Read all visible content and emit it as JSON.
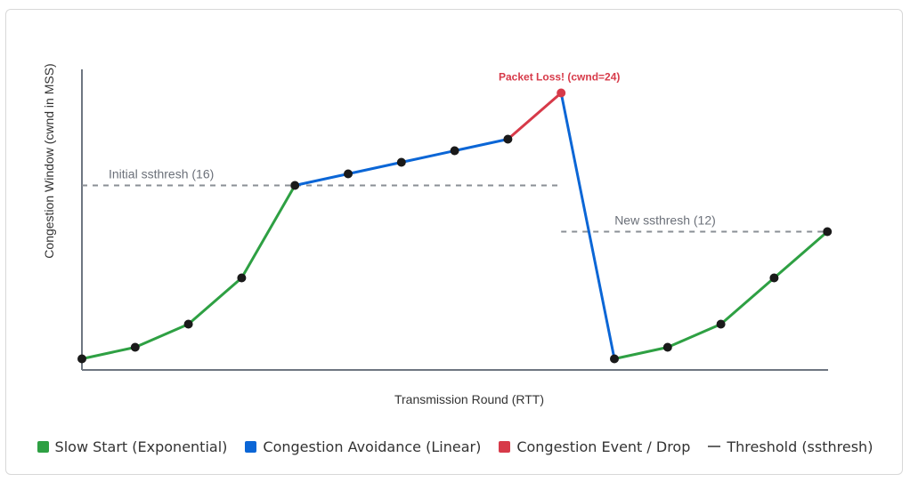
{
  "chart_data": {
    "type": "line",
    "xlabel": "Transmission Round (RTT)",
    "ylabel": "Congestion Window (cwnd in MSS)",
    "x": [
      0,
      1,
      2,
      3,
      4,
      5,
      6,
      7,
      8,
      9,
      10,
      11,
      12,
      13,
      14
    ],
    "values": [
      1,
      2,
      4,
      8,
      16,
      17,
      18,
      19,
      20,
      24,
      1,
      2,
      4,
      8,
      12
    ],
    "phases": [
      "slow",
      "slow",
      "slow",
      "slow",
      "slow",
      "avoid",
      "avoid",
      "avoid",
      "avoid",
      "drop",
      "slow",
      "slow",
      "slow",
      "slow",
      "slow"
    ],
    "ylim": [
      0,
      25
    ],
    "thresholds": [
      {
        "label": "Initial ssthresh (16)",
        "value": 16,
        "x_start": 0,
        "x_end": 9
      },
      {
        "label": "New ssthresh (12)",
        "value": 12,
        "x_start": 9,
        "x_end": 14
      }
    ],
    "annotation": {
      "text": "Packet Loss! (cwnd=24)",
      "x": 9,
      "y": 24
    },
    "legend": [
      {
        "label": "Slow Start (Exponential)",
        "color": "#2ea043",
        "kind": "box"
      },
      {
        "label": "Congestion Avoidance (Linear)",
        "color": "#0b66d6",
        "kind": "box"
      },
      {
        "label": "Congestion Event / Drop",
        "color": "#d73a49",
        "kind": "box"
      },
      {
        "label": "Threshold (ssthresh)",
        "color": "#666666",
        "kind": "line"
      }
    ],
    "colors": {
      "slow": "#2ea043",
      "avoid": "#0b66d6",
      "drop": "#d73a49",
      "threshold": "#8a8f96",
      "point": "#1a1a1a",
      "axis": "#6e7681",
      "annotation": "#d73a49"
    },
    "grid": false,
    "legend_position": "bottom"
  }
}
